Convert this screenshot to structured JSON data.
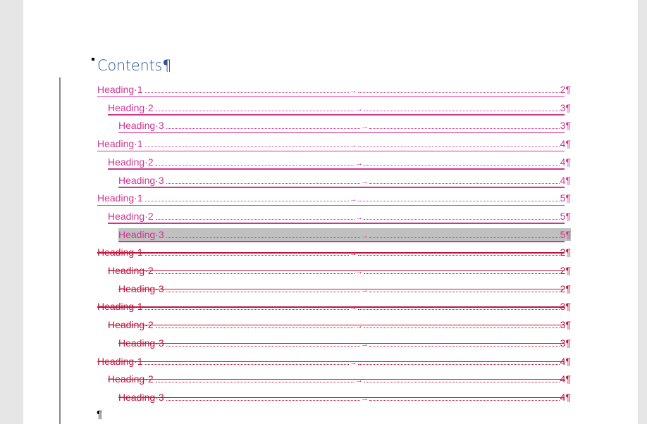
{
  "document": {
    "title": "Contents",
    "paragraph_mark": "¶",
    "tab_arrow": "→",
    "colors": {
      "inserted": "#d03590",
      "deleted": "#c0143c",
      "title": "#2f5496",
      "selection": "#c0c0c0"
    },
    "toc_entries": [
      {
        "label": "Heading·1",
        "level": 1,
        "page": "2",
        "revision": "inserted"
      },
      {
        "label": "Heading·2",
        "level": 2,
        "page": "3",
        "revision": "inserted"
      },
      {
        "label": "Heading·3",
        "level": 3,
        "page": "3",
        "revision": "inserted"
      },
      {
        "label": "Heading·1",
        "level": 1,
        "page": "4",
        "revision": "inserted"
      },
      {
        "label": "Heading·2",
        "level": 2,
        "page": "4",
        "revision": "inserted"
      },
      {
        "label": "Heading·3",
        "level": 3,
        "page": "4",
        "revision": "inserted"
      },
      {
        "label": "Heading·1",
        "level": 1,
        "page": "5",
        "revision": "inserted"
      },
      {
        "label": "Heading·2",
        "level": 2,
        "page": "5",
        "revision": "inserted"
      },
      {
        "label": "Heading·3",
        "level": 3,
        "page": "5",
        "revision": "inserted",
        "selected": true
      },
      {
        "label": "Heading·1",
        "level": 1,
        "page": "2",
        "revision": "deleted"
      },
      {
        "label": "Heading·2",
        "level": 2,
        "page": "2",
        "revision": "deleted"
      },
      {
        "label": "Heading·3",
        "level": 3,
        "page": "2",
        "revision": "deleted"
      },
      {
        "label": "Heading·1",
        "level": 1,
        "page": "3",
        "revision": "deleted"
      },
      {
        "label": "Heading·2",
        "level": 2,
        "page": "3",
        "revision": "deleted"
      },
      {
        "label": "Heading·3",
        "level": 3,
        "page": "3",
        "revision": "deleted"
      },
      {
        "label": "Heading·1",
        "level": 1,
        "page": "4",
        "revision": "deleted"
      },
      {
        "label": "Heading·2",
        "level": 2,
        "page": "4",
        "revision": "deleted"
      },
      {
        "label": "Heading·3",
        "level": 3,
        "page": "4",
        "revision": "deleted"
      }
    ]
  }
}
